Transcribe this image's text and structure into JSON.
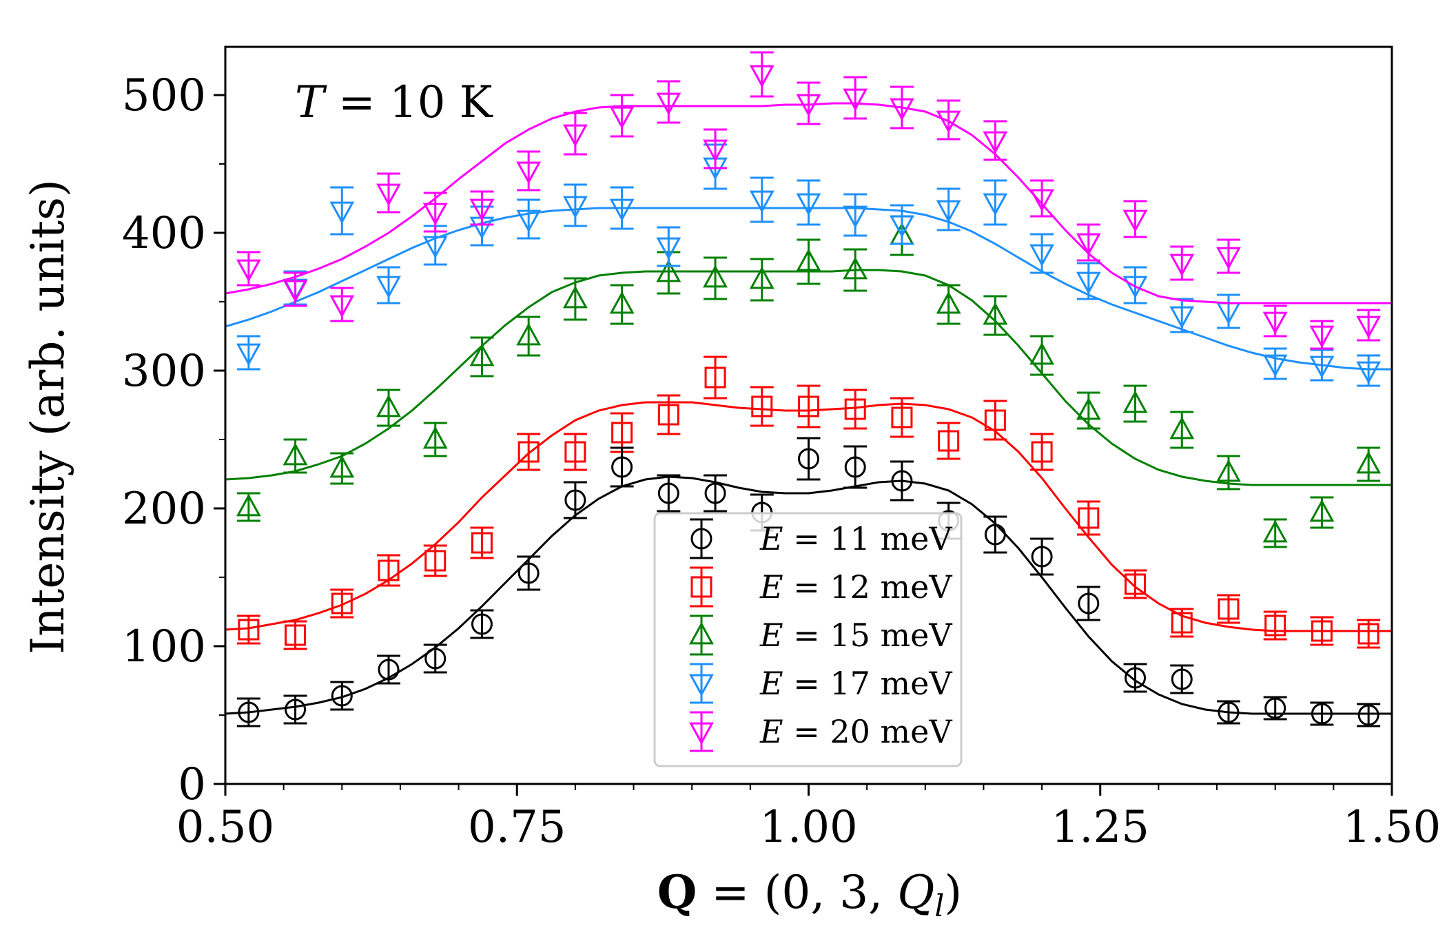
{
  "chart_data": {
    "type": "scatter",
    "title": "",
    "xlabel_bold": "Q",
    "xlabel_rest": " = (0, 3, ",
    "xlabel_q": "Q",
    "xlabel_sub": "l",
    "xlabel_close": ")",
    "ylabel": "Intensity (arb. units)",
    "annotation_var": "T",
    "annotation_rest": " = 10 K",
    "xlim": [
      0.5,
      1.5
    ],
    "ylim": [
      0,
      535
    ],
    "x_ticks": [
      0.5,
      0.75,
      1.0,
      1.25,
      1.5
    ],
    "x_tick_labels": [
      "0.50",
      "0.75",
      "1.00",
      "1.25",
      "1.50"
    ],
    "y_ticks": [
      0,
      100,
      200,
      300,
      400,
      500
    ],
    "y_tick_labels": [
      "0",
      "100",
      "200",
      "300",
      "400",
      "500"
    ],
    "grid": false,
    "legend_position": "lower-center",
    "x": [
      0.52,
      0.56,
      0.6,
      0.64,
      0.68,
      0.72,
      0.76,
      0.8,
      0.84,
      0.88,
      0.92,
      0.96,
      1.0,
      1.04,
      1.08,
      1.12,
      1.16,
      1.2,
      1.24,
      1.28,
      1.32,
      1.36,
      1.4,
      1.44,
      1.48
    ],
    "fit_x": [
      0.5,
      0.52,
      0.54,
      0.56,
      0.58,
      0.6,
      0.62,
      0.64,
      0.66,
      0.68,
      0.7,
      0.72,
      0.74,
      0.76,
      0.78,
      0.8,
      0.82,
      0.84,
      0.86,
      0.88,
      0.9,
      0.92,
      0.94,
      0.96,
      0.98,
      1.0,
      1.02,
      1.04,
      1.06,
      1.08,
      1.1,
      1.12,
      1.14,
      1.16,
      1.18,
      1.2,
      1.22,
      1.24,
      1.26,
      1.28,
      1.3,
      1.32,
      1.34,
      1.36,
      1.38,
      1.4,
      1.42,
      1.44,
      1.46,
      1.48,
      1.5
    ],
    "series": [
      {
        "name_var": "E",
        "name_rest": " = 11 meV",
        "color": "#000000",
        "marker": "circle",
        "values": [
          52,
          54,
          64,
          83,
          91,
          116,
          153,
          206,
          230,
          211,
          211,
          197,
          236,
          230,
          220,
          191,
          181,
          165,
          131,
          77,
          76,
          52,
          55,
          51,
          50
        ],
        "errors": [
          10,
          10,
          10,
          10,
          10,
          10,
          12,
          13,
          14,
          13,
          13,
          13,
          15,
          15,
          14,
          13,
          13,
          13,
          12,
          10,
          10,
          8,
          8,
          8,
          8
        ],
        "fit": [
          51,
          52,
          54,
          56,
          59,
          63,
          69,
          77,
          87,
          99,
          113,
          129,
          146,
          163,
          180,
          195,
          207,
          216,
          221,
          223,
          222,
          219,
          215,
          212,
          211,
          211,
          213,
          216,
          219,
          220,
          218,
          213,
          203,
          189,
          171,
          150,
          128,
          107,
          89,
          75,
          65,
          58,
          54,
          52,
          51,
          51,
          51,
          51,
          51,
          51,
          51
        ]
      },
      {
        "name_var": "E",
        "name_rest": " = 12 meV",
        "color": "#ff0000",
        "marker": "square",
        "values": [
          112,
          108,
          131,
          155,
          162,
          175,
          241,
          241,
          255,
          268,
          295,
          274,
          274,
          272,
          266,
          249,
          264,
          241,
          193,
          145,
          117,
          127,
          115,
          111,
          109
        ],
        "errors": [
          10,
          10,
          10,
          11,
          11,
          11,
          13,
          13,
          14,
          14,
          15,
          14,
          15,
          14,
          14,
          13,
          14,
          13,
          12,
          10,
          10,
          10,
          10,
          10,
          10
        ],
        "fit": [
          112,
          113,
          116,
          119,
          124,
          130,
          138,
          148,
          160,
          174,
          190,
          208,
          224,
          240,
          253,
          264,
          271,
          275,
          277,
          277,
          277,
          275,
          273,
          272,
          271,
          271,
          272,
          273,
          275,
          276,
          275,
          272,
          266,
          256,
          241,
          222,
          200,
          179,
          159,
          143,
          131,
          122,
          117,
          114,
          112,
          111,
          111,
          111,
          111,
          111,
          111
        ]
      },
      {
        "name_var": "E",
        "name_rest": " = 15 meV",
        "color": "#008000",
        "marker": "triangle-up",
        "values": [
          201,
          238,
          229,
          273,
          250,
          310,
          325,
          352,
          348,
          371,
          367,
          366,
          379,
          373,
          398,
          348,
          340,
          311,
          271,
          276,
          257,
          226,
          182,
          197,
          232
        ],
        "errors": [
          10,
          12,
          11,
          13,
          12,
          14,
          14,
          15,
          14,
          15,
          15,
          15,
          16,
          15,
          14,
          14,
          14,
          14,
          13,
          13,
          13,
          12,
          10,
          11,
          12
        ],
        "fit": [
          221,
          222,
          224,
          227,
          232,
          238,
          247,
          258,
          271,
          286,
          302,
          318,
          333,
          346,
          357,
          364,
          369,
          371,
          372,
          372,
          372,
          372,
          372,
          372,
          372,
          372,
          372,
          373,
          373,
          372,
          369,
          362,
          351,
          336,
          318,
          298,
          278,
          261,
          247,
          236,
          228,
          223,
          220,
          218,
          217,
          217,
          217,
          217,
          217,
          217,
          217
        ]
      },
      {
        "name_var": "E",
        "name_rest": " = 17 meV",
        "color": "#1e90ff",
        "marker": "triangle-down",
        "values": [
          313,
          360,
          416,
          362,
          391,
          405,
          410,
          420,
          418,
          390,
          448,
          424,
          422,
          413,
          406,
          417,
          422,
          385,
          365,
          362,
          340,
          343,
          305,
          304,
          300
        ],
        "errors": [
          12,
          12,
          17,
          13,
          14,
          14,
          14,
          15,
          15,
          14,
          16,
          16,
          16,
          15,
          14,
          15,
          16,
          14,
          13,
          13,
          12,
          12,
          11,
          11,
          11
        ],
        "fit": [
          332,
          337,
          343,
          350,
          357,
          365,
          373,
          381,
          389,
          396,
          402,
          407,
          411,
          414,
          416,
          417,
          418,
          418,
          418,
          418,
          418,
          418,
          418,
          418,
          418,
          418,
          418,
          418,
          417,
          416,
          413,
          408,
          401,
          392,
          382,
          372,
          363,
          355,
          348,
          342,
          336,
          330,
          324,
          318,
          313,
          309,
          306,
          304,
          302,
          301,
          301
        ]
      },
      {
        "name_var": "E",
        "name_rest": " = 20 meV",
        "color": "#ff00ff",
        "marker": "triangle-down",
        "values": [
          374,
          359,
          348,
          429,
          415,
          418,
          445,
          472,
          485,
          495,
          461,
          515,
          494,
          498,
          491,
          482,
          467,
          425,
          393,
          410,
          378,
          383,
          336,
          326,
          333
        ],
        "errors": [
          12,
          12,
          12,
          14,
          14,
          12,
          14,
          15,
          15,
          15,
          14,
          16,
          15,
          15,
          15,
          14,
          14,
          13,
          13,
          13,
          12,
          12,
          11,
          10,
          11
        ],
        "fit": [
          356,
          359,
          363,
          368,
          374,
          381,
          390,
          400,
          412,
          425,
          439,
          452,
          465,
          475,
          483,
          488,
          491,
          492,
          492,
          492,
          492,
          492,
          492,
          492,
          493,
          493,
          494,
          494,
          493,
          491,
          488,
          481,
          471,
          457,
          440,
          421,
          402,
          385,
          371,
          361,
          354,
          351,
          350,
          349,
          349,
          349,
          349,
          349,
          349,
          349,
          349
        ]
      }
    ]
  }
}
